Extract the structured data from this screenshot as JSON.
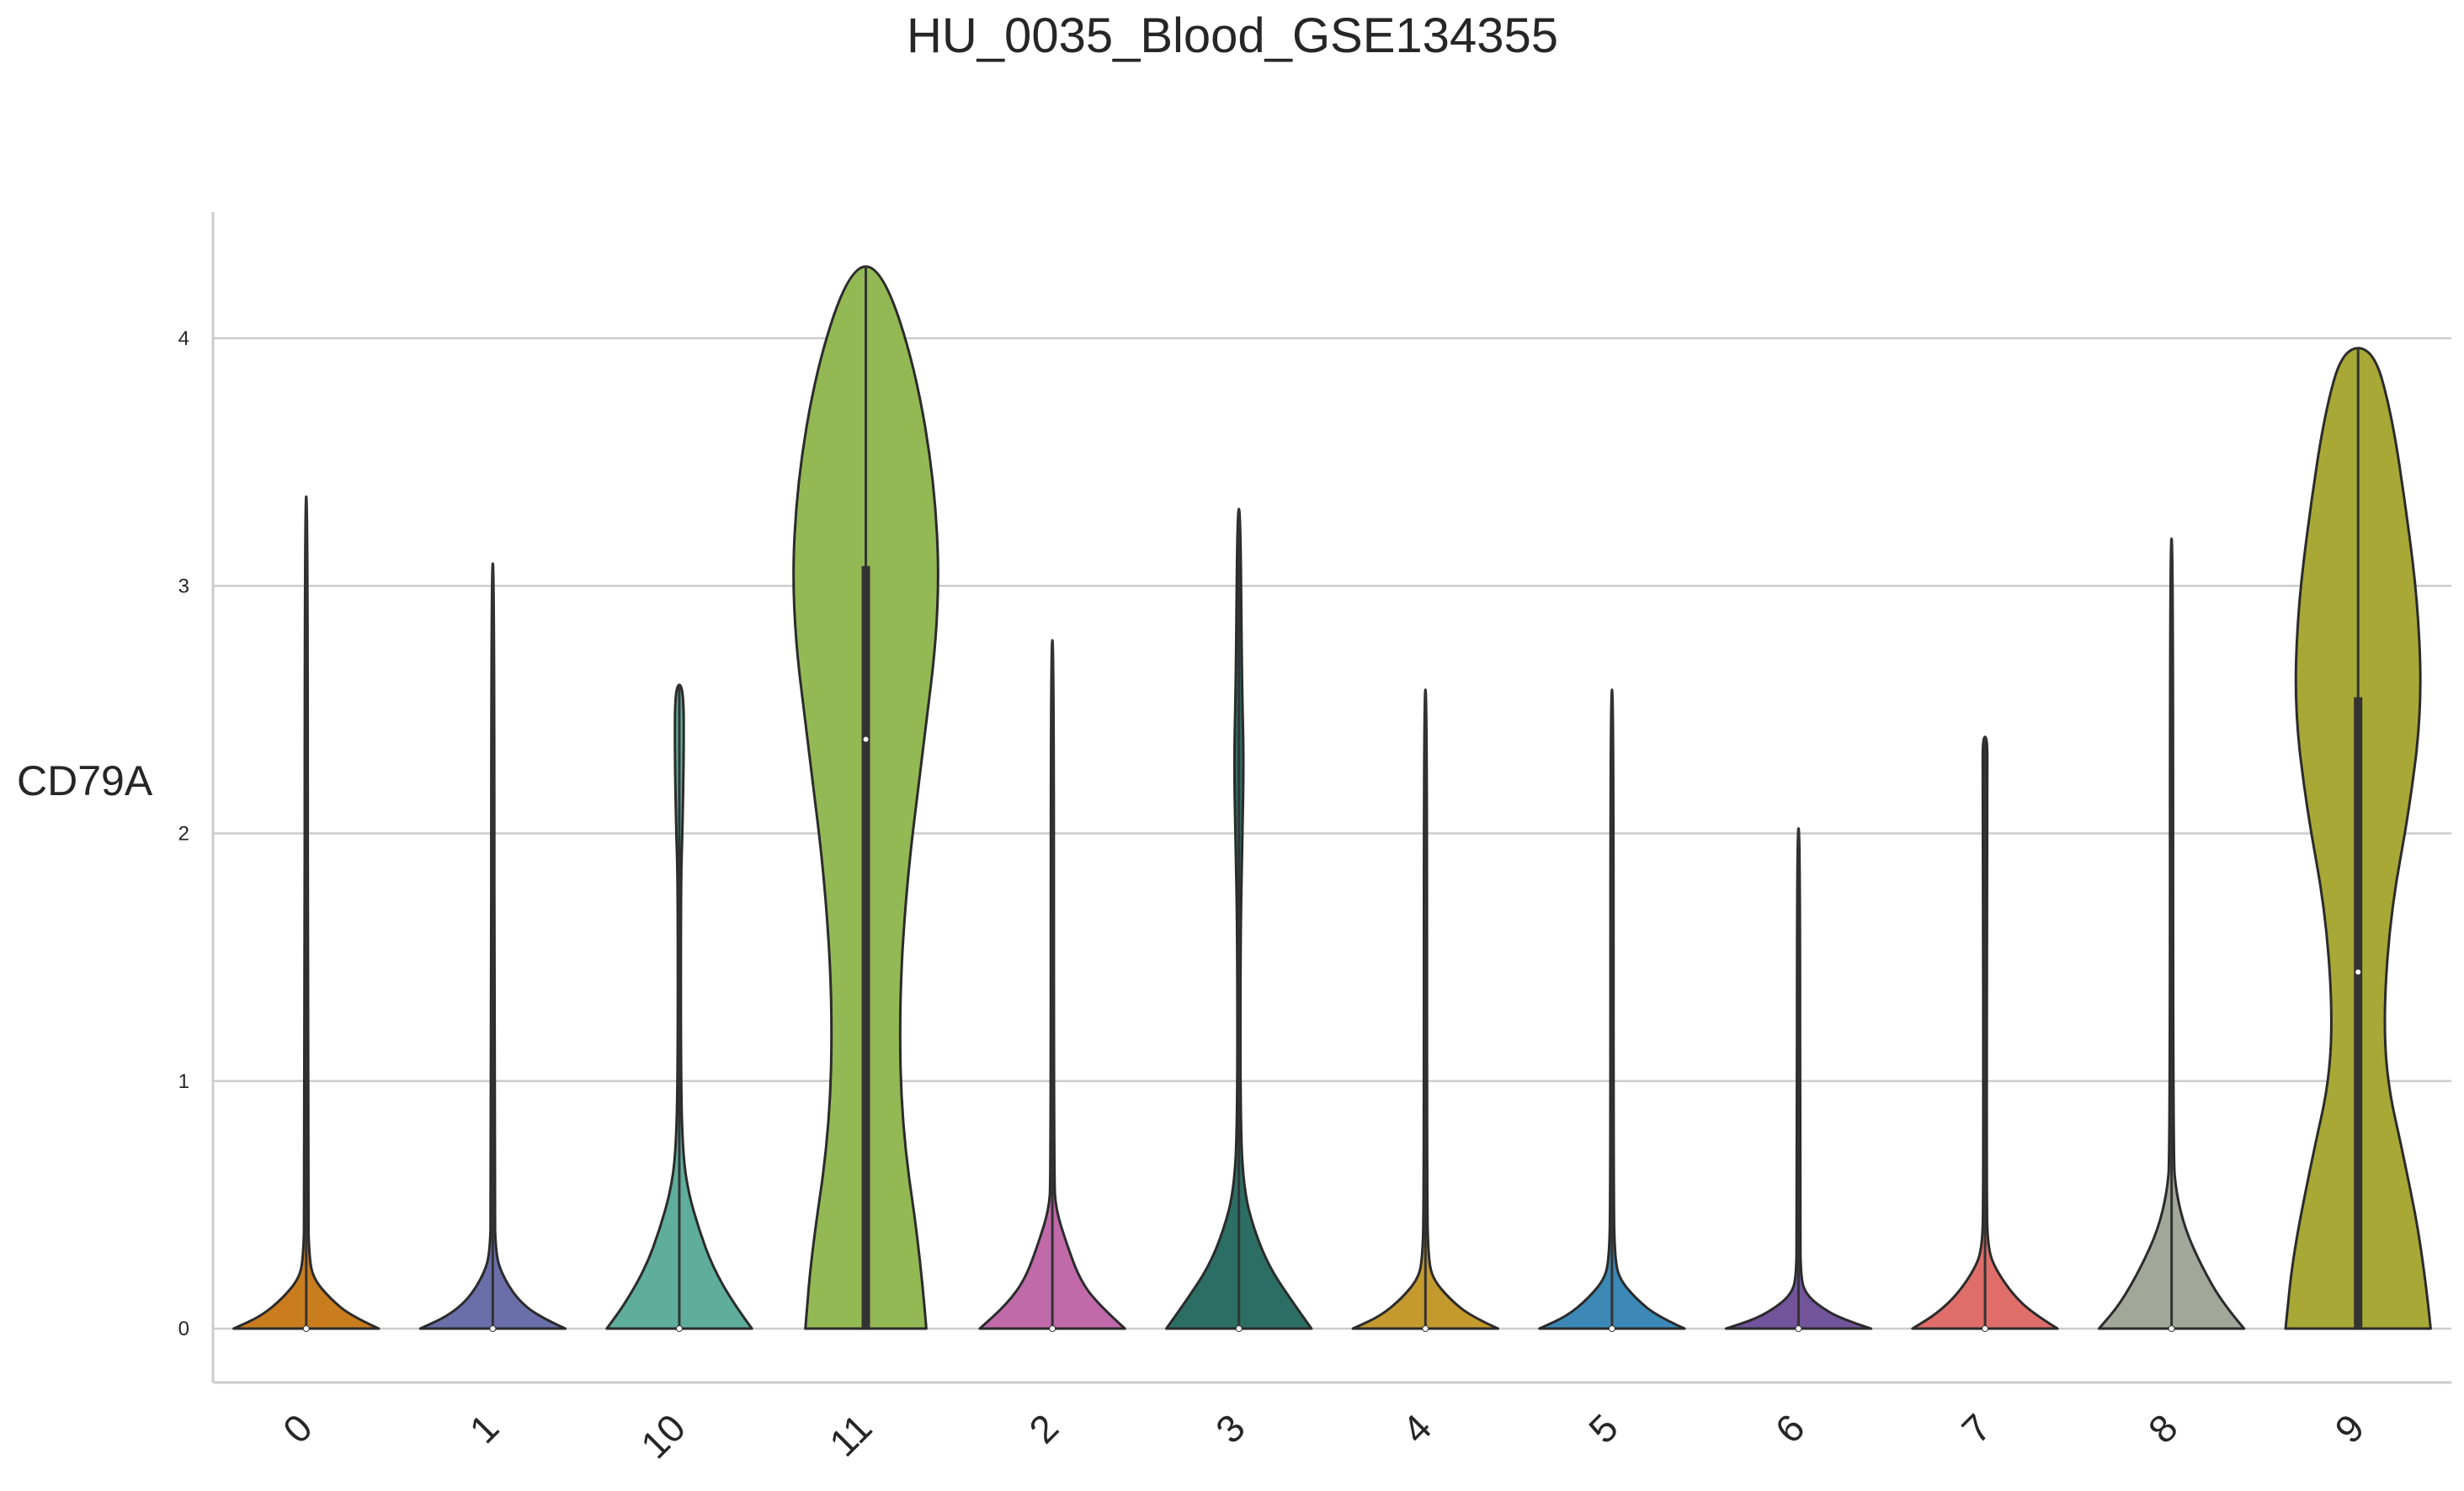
{
  "chart_data": {
    "type": "violin",
    "title": "HU_0035_Blood_GSE134355",
    "xlabel": "",
    "ylabel": "CD79A",
    "ylim": [
      -0.22,
      4.5
    ],
    "yticks": [
      0,
      1,
      2,
      3,
      4
    ],
    "grid": "horizontal",
    "categories": [
      "0",
      "1",
      "10",
      "11",
      "2",
      "3",
      "4",
      "5",
      "6",
      "7",
      "8",
      "9"
    ],
    "colors": [
      "#c97d1f",
      "#6a6fa9",
      "#5fae9c",
      "#93b954",
      "#c06aaa",
      "#2d6e64",
      "#c49a2e",
      "#3c88b6",
      "#72549b",
      "#df6e6b",
      "#a3a79a",
      "#a8a836"
    ],
    "violins": [
      {
        "category": "0",
        "max": 3.36,
        "median": 0,
        "q1": 0,
        "q3": 0,
        "profile": [
          [
            0,
            0.24
          ],
          [
            0.05,
            0.15
          ],
          [
            0.12,
            0.08
          ],
          [
            0.2,
            0.025
          ],
          [
            0.28,
            0.01
          ],
          [
            0.5,
            0.005
          ],
          [
            3.36,
            0.005
          ]
        ]
      },
      {
        "category": "1",
        "max": 3.09,
        "median": 0,
        "q1": 0,
        "q3": 0,
        "profile": [
          [
            0,
            0.24
          ],
          [
            0.05,
            0.15
          ],
          [
            0.12,
            0.08
          ],
          [
            0.22,
            0.03
          ],
          [
            0.3,
            0.01
          ],
          [
            0.5,
            0.005
          ],
          [
            3.09,
            0.005
          ]
        ]
      },
      {
        "category": "10",
        "max": 2.6,
        "median": 0,
        "q1": 0,
        "q3": 0,
        "profile": [
          [
            0,
            0.24
          ],
          [
            0.1,
            0.18
          ],
          [
            0.25,
            0.11
          ],
          [
            0.4,
            0.065
          ],
          [
            0.55,
            0.03
          ],
          [
            0.7,
            0.012
          ],
          [
            1.0,
            0.005
          ],
          [
            1.8,
            0.005
          ],
          [
            2.0,
            0.01
          ],
          [
            2.3,
            0.015
          ],
          [
            2.6,
            0.014
          ]
        ]
      },
      {
        "category": "11",
        "max": 4.29,
        "median": 2.38,
        "q1": 0,
        "q3": 3.08,
        "profile": [
          [
            0,
            0.2
          ],
          [
            0.3,
            0.18
          ],
          [
            0.8,
            0.12
          ],
          [
            1.3,
            0.11
          ],
          [
            1.8,
            0.135
          ],
          [
            2.3,
            0.185
          ],
          [
            2.9,
            0.245
          ],
          [
            3.4,
            0.23
          ],
          [
            3.9,
            0.16
          ],
          [
            4.29,
            0.05
          ]
        ]
      },
      {
        "category": "2",
        "max": 2.78,
        "median": 0,
        "q1": 0,
        "q3": 0,
        "profile": [
          [
            0,
            0.24
          ],
          [
            0.1,
            0.15
          ],
          [
            0.2,
            0.09
          ],
          [
            0.35,
            0.045
          ],
          [
            0.48,
            0.012
          ],
          [
            0.6,
            0.005
          ],
          [
            2.78,
            0.005
          ]
        ]
      },
      {
        "category": "3",
        "max": 3.31,
        "median": 0,
        "q1": 0,
        "q3": 0,
        "profile": [
          [
            0,
            0.24
          ],
          [
            0.12,
            0.17
          ],
          [
            0.25,
            0.1
          ],
          [
            0.4,
            0.05
          ],
          [
            0.55,
            0.018
          ],
          [
            0.8,
            0.005
          ],
          [
            1.6,
            0.005
          ],
          [
            2.0,
            0.012
          ],
          [
            2.3,
            0.016
          ],
          [
            2.6,
            0.01
          ],
          [
            3.31,
            0.005
          ]
        ]
      },
      {
        "category": "4",
        "max": 2.58,
        "median": 0,
        "q1": 0,
        "q3": 0,
        "profile": [
          [
            0,
            0.24
          ],
          [
            0.05,
            0.15
          ],
          [
            0.12,
            0.08
          ],
          [
            0.2,
            0.025
          ],
          [
            0.28,
            0.01
          ],
          [
            0.5,
            0.005
          ],
          [
            2.58,
            0.005
          ]
        ]
      },
      {
        "category": "5",
        "max": 2.58,
        "median": 0,
        "q1": 0,
        "q3": 0,
        "profile": [
          [
            0,
            0.24
          ],
          [
            0.05,
            0.15
          ],
          [
            0.12,
            0.08
          ],
          [
            0.2,
            0.025
          ],
          [
            0.28,
            0.01
          ],
          [
            0.5,
            0.005
          ],
          [
            2.58,
            0.005
          ]
        ]
      },
      {
        "category": "6",
        "max": 2.02,
        "median": 0,
        "q1": 0,
        "q3": 0,
        "profile": [
          [
            0,
            0.24
          ],
          [
            0.04,
            0.14
          ],
          [
            0.09,
            0.07
          ],
          [
            0.14,
            0.025
          ],
          [
            0.2,
            0.008
          ],
          [
            0.4,
            0.005
          ],
          [
            2.02,
            0.005
          ]
        ]
      },
      {
        "category": "7",
        "max": 2.39,
        "median": 0,
        "q1": 0,
        "q3": 0,
        "profile": [
          [
            0,
            0.24
          ],
          [
            0.06,
            0.16
          ],
          [
            0.14,
            0.09
          ],
          [
            0.25,
            0.03
          ],
          [
            0.33,
            0.01
          ],
          [
            0.5,
            0.005
          ],
          [
            2.2,
            0.007
          ],
          [
            2.39,
            0.008
          ]
        ]
      },
      {
        "category": "8",
        "max": 3.19,
        "median": 0,
        "q1": 0,
        "q3": 0,
        "profile": [
          [
            0,
            0.24
          ],
          [
            0.1,
            0.17
          ],
          [
            0.25,
            0.1
          ],
          [
            0.4,
            0.045
          ],
          [
            0.55,
            0.015
          ],
          [
            0.7,
            0.005
          ],
          [
            3.19,
            0.005
          ]
        ]
      },
      {
        "category": "9",
        "max": 3.96,
        "median": 1.44,
        "q1": 0,
        "q3": 2.55,
        "profile": [
          [
            0,
            0.24
          ],
          [
            0.3,
            0.215
          ],
          [
            0.7,
            0.15
          ],
          [
            1.0,
            0.095
          ],
          [
            1.3,
            0.085
          ],
          [
            1.7,
            0.11
          ],
          [
            2.1,
            0.17
          ],
          [
            2.5,
            0.21
          ],
          [
            2.9,
            0.2
          ],
          [
            3.3,
            0.16
          ],
          [
            3.7,
            0.11
          ],
          [
            3.96,
            0.05
          ]
        ]
      }
    ]
  }
}
